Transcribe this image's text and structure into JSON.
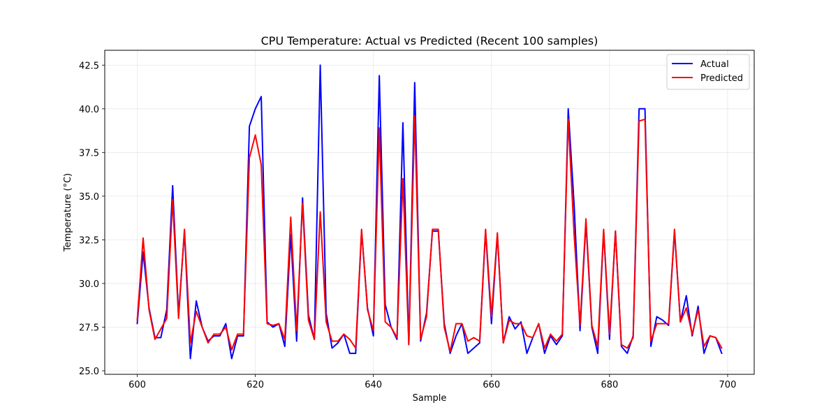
{
  "chart_data": {
    "type": "line",
    "title": "CPU Temperature: Actual vs Predicted (Recent 100 samples)",
    "xlabel": "Sample",
    "ylabel": "Temperature (°C)",
    "xlim": [
      594.5,
      704.5
    ],
    "ylim": [
      24.8,
      43.35
    ],
    "xticks": [
      600,
      620,
      640,
      660,
      680,
      700
    ],
    "yticks": [
      25.0,
      27.5,
      30.0,
      32.5,
      35.0,
      37.5,
      40.0,
      42.5
    ],
    "grid": true,
    "legend_position": "top-right",
    "x_start": 600,
    "series": [
      {
        "name": "Actual",
        "color": "#0000ff",
        "values": [
          27.7,
          31.8,
          28.6,
          26.9,
          26.9,
          28.5,
          35.6,
          28.2,
          33.0,
          25.7,
          29.0,
          27.5,
          26.7,
          27.0,
          27.0,
          27.7,
          25.7,
          27.0,
          27.0,
          39.0,
          40.0,
          40.7,
          27.8,
          27.5,
          27.7,
          26.4,
          32.8,
          26.7,
          34.9,
          28.2,
          26.8,
          42.5,
          28.3,
          26.3,
          26.6,
          27.1,
          26.0,
          26.0,
          33.0,
          28.6,
          27.0,
          41.9,
          28.8,
          27.5,
          26.8,
          39.2,
          26.5,
          41.5,
          26.7,
          28.3,
          33.0,
          33.0,
          27.7,
          26.0,
          27.0,
          27.7,
          26.0,
          26.3,
          26.6,
          33.0,
          27.7,
          32.8,
          26.6,
          28.1,
          27.4,
          27.8,
          26.0,
          26.9,
          27.7,
          26.0,
          27.0,
          26.5,
          27.0,
          40.0,
          34.5,
          27.3,
          33.5,
          27.5,
          26.0,
          33.0,
          26.8,
          33.0,
          26.4,
          26.0,
          27.0,
          40.0,
          40.0,
          26.4,
          28.1,
          27.9,
          27.6,
          33.0,
          27.8,
          29.3,
          27.0,
          28.7,
          26.0,
          27.0,
          26.9,
          26.0
        ]
      },
      {
        "name": "Predicted",
        "color": "#ff0000",
        "values": [
          27.9,
          32.6,
          28.5,
          26.8,
          27.4,
          28.0,
          34.8,
          28.0,
          33.1,
          26.6,
          28.4,
          27.5,
          26.6,
          27.1,
          27.1,
          27.5,
          26.2,
          27.1,
          27.1,
          37.2,
          38.5,
          36.8,
          27.7,
          27.6,
          27.7,
          26.8,
          33.8,
          27.3,
          34.6,
          27.9,
          26.8,
          34.1,
          27.8,
          26.7,
          26.7,
          27.1,
          26.8,
          26.3,
          33.1,
          28.5,
          27.3,
          38.9,
          27.8,
          27.5,
          26.9,
          36.0,
          26.5,
          39.6,
          26.8,
          28.1,
          33.1,
          33.1,
          27.5,
          26.1,
          27.7,
          27.7,
          26.7,
          26.9,
          26.7,
          33.1,
          28.1,
          32.9,
          26.6,
          27.9,
          27.7,
          27.7,
          27.0,
          26.9,
          27.7,
          26.3,
          27.1,
          26.7,
          27.1,
          39.4,
          32.8,
          27.6,
          33.7,
          27.6,
          26.4,
          33.1,
          27.1,
          33.0,
          26.5,
          26.3,
          26.9,
          39.3,
          39.4,
          26.7,
          27.7,
          27.7,
          27.7,
          33.1,
          27.8,
          28.6,
          27.1,
          28.5,
          26.4,
          27.0,
          26.9,
          26.3
        ]
      }
    ]
  }
}
